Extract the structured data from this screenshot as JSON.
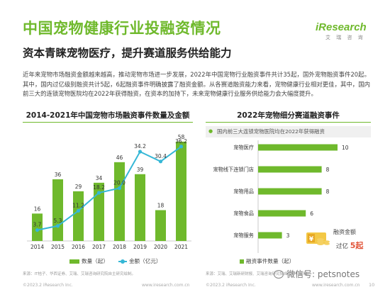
{
  "header": {
    "title": "中国宠物健康行业投融资情况",
    "subtitle": "资本青睐宠物医疗，提升赛道服务供给能力",
    "logo": "iResearch",
    "logo_sub": "艾 瑞 咨 询"
  },
  "intro": "近年来宠物市场融资金额越来越高，推动宠物市场进一步发展，2022年中国宠物行业融资事件共计35起，国外宠物融资事件20起。其中，国内过亿级别融资共计5起，6起融资事件明确披露了融资金额。从各赛道融资能力来看，宠物健康行业相对更佳，其中，国内前三大的连锁宠物医院均在2022年获得融资，在资本的加持下，未来宠物健康行业服务供给能力会大幅度提升。",
  "left_panel": {
    "title": "2014-2021年中国宠物市场融资事件数量及金额",
    "legend_bar": "数量（起）",
    "legend_line": "金额（亿元）",
    "source": "来源：IT桔子、华西证券、艾瑞、艾瑞咨询研究院自主研究绘制。"
  },
  "right_panel": {
    "title": "2022年宠物细分赛道融资事件",
    "callout": "国内前三大连锁宠物医院均在2022年获得融资",
    "legend": "融资事件数量（起）",
    "badge_line1": "融资金额",
    "badge_line2": "过亿",
    "badge_count": "5起",
    "source": "来源：艾瑞、艾瑞新研财报、艾瑞咨询研究院自主研究绘制。"
  },
  "footer": {
    "left": "©2023.2 iResearch Inc.",
    "center_left": "www.iresearch.com.cn",
    "right": "©2023.2 iResearch Inc.",
    "center_right": "www.iresearch.com.cn",
    "page": "10",
    "watermark": "微信号: petsnotes"
  },
  "colors": {
    "accent": "#6fb92c",
    "line": "#35b7d6",
    "callout_bg": "#f0f0f0",
    "badge": "#e2563b"
  },
  "chart_data": [
    {
      "type": "bar",
      "title": "2014-2021年中国宠物市场融资事件数量及金额",
      "categories": [
        "2014",
        "2015",
        "2016",
        "2017",
        "2018",
        "2019",
        "2020",
        "2021"
      ],
      "series": [
        {
          "name": "数量（起）",
          "type": "bar",
          "values": [
            16,
            36,
            29,
            34,
            46,
            39,
            18,
            58
          ]
        },
        {
          "name": "金额（亿元）",
          "type": "line",
          "values": [
            3.7,
            5.3,
            11.2,
            18.2,
            20.0,
            34.2,
            30.4,
            36.2
          ]
        }
      ],
      "legend": "bottom"
    },
    {
      "type": "bar",
      "orientation": "horizontal",
      "title": "2022年宠物细分赛道融资事件",
      "categories": [
        "宠物医疗",
        "宠物线下连锁门店",
        "宠物用品",
        "宠物食品",
        "宠物服务"
      ],
      "series": [
        {
          "name": "融资事件数量（起）",
          "values": [
            10,
            8,
            8,
            6,
            3
          ]
        }
      ],
      "legend": "bottom"
    }
  ]
}
